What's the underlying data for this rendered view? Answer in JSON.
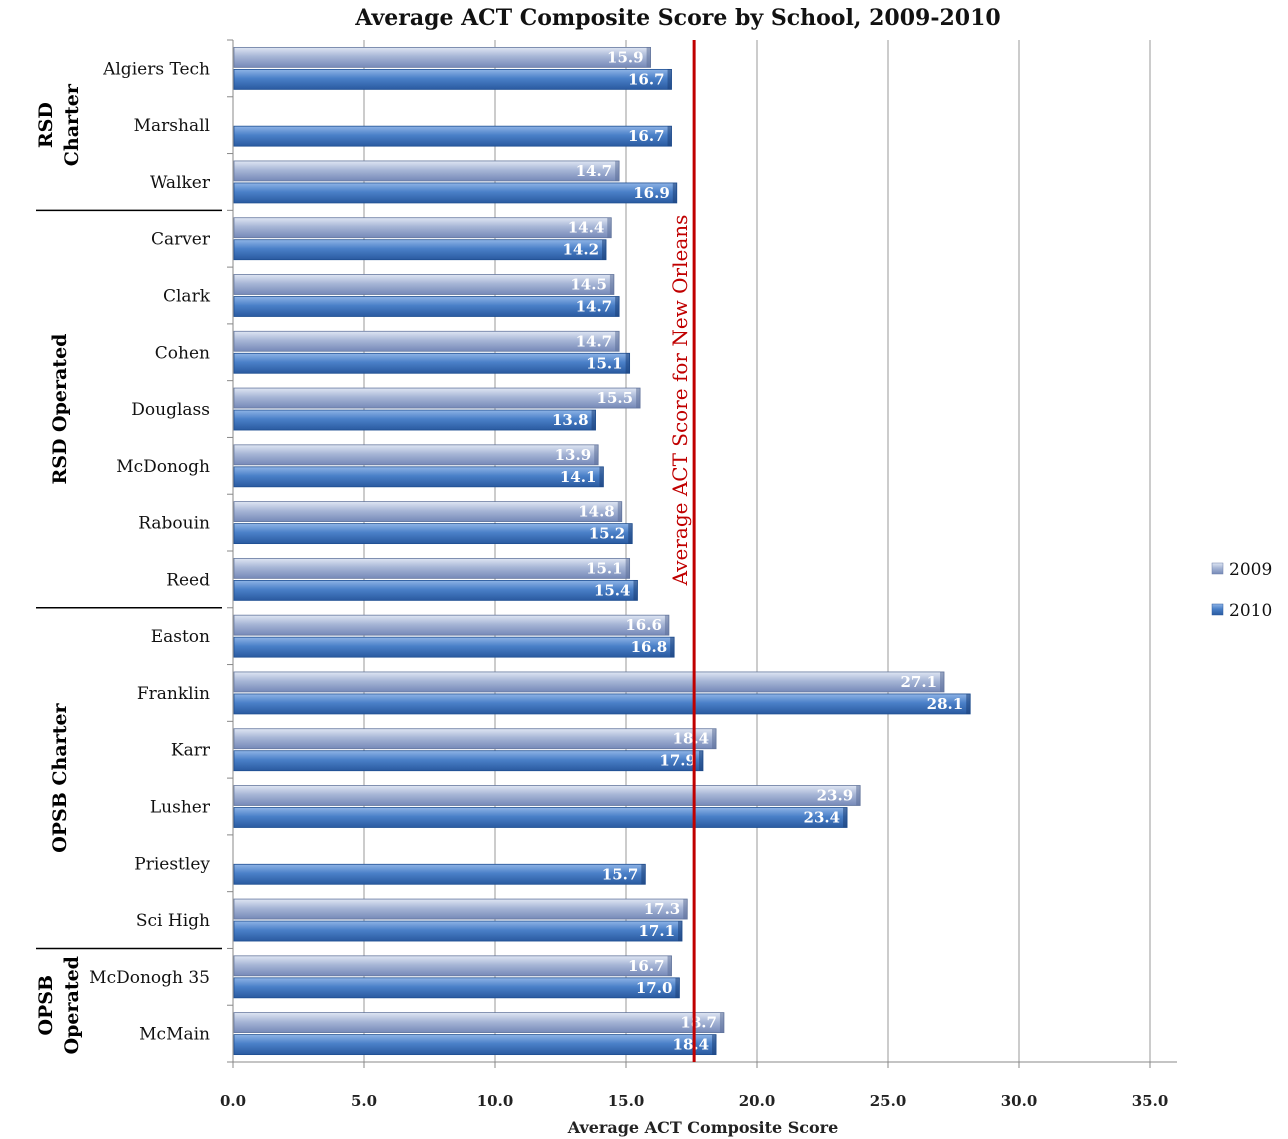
{
  "chart_data": {
    "type": "bar",
    "orientation": "horizontal",
    "title": "Average ACT Composite Score by School, 2009-2010",
    "xlabel": "Average ACT Composite Score",
    "xlim": [
      0,
      35
    ],
    "xticks": [
      "0.0",
      "5.0",
      "10.0",
      "15.0",
      "20.0",
      "25.0",
      "30.0",
      "35.0"
    ],
    "grid": "vertical",
    "legend_position": "right",
    "categories": [
      "Algiers Tech",
      "Marshall",
      "Walker",
      "Carver",
      "Clark",
      "Cohen",
      "Douglass",
      "McDonogh",
      "Rabouin",
      "Reed",
      "Easton",
      "Franklin",
      "Karr",
      "Lusher",
      "Priestley",
      "Sci High",
      "McDonogh 35",
      "McMain"
    ],
    "series": [
      {
        "name": "2009",
        "color": "#8ea1c9",
        "values": [
          15.9,
          null,
          14.7,
          14.4,
          14.5,
          14.7,
          15.5,
          13.9,
          14.8,
          15.1,
          16.6,
          27.1,
          18.4,
          23.9,
          null,
          17.3,
          16.7,
          18.7
        ]
      },
      {
        "name": "2010",
        "color": "#3b6fb8",
        "values": [
          16.7,
          16.7,
          16.9,
          14.2,
          14.7,
          15.1,
          13.8,
          14.1,
          15.2,
          15.4,
          16.8,
          28.1,
          17.9,
          23.4,
          15.7,
          17.1,
          17.0,
          18.4
        ]
      }
    ],
    "value_labels_2009": [
      "15.9",
      "",
      "14.7",
      "14.4",
      "14.5",
      "14.7",
      "15.5",
      "13.9",
      "14.8",
      "15.1",
      "16.6",
      "27.1",
      "18.4",
      "23.9",
      "",
      "17.3",
      "16.7",
      "18.7"
    ],
    "value_labels_2010": [
      "16.7",
      "16.7",
      "16.9",
      "14.2",
      "14.7",
      "15.1",
      "13.8",
      "14.1",
      "15.2",
      "15.4",
      "16.8",
      "28.1",
      "17.9",
      "23.4",
      "15.7",
      "17.1",
      "17.0",
      "18.4"
    ],
    "groups": [
      {
        "label": "RSD Charter",
        "lines": [
          "RSD",
          "Charter"
        ],
        "start": 0,
        "end": 2
      },
      {
        "label": "RSD Operated",
        "lines": [
          "RSD Operated"
        ],
        "start": 3,
        "end": 9
      },
      {
        "label": "OPSB Charter",
        "lines": [
          "OPSB Charter"
        ],
        "start": 10,
        "end": 15
      },
      {
        "label": "OPSB Operated",
        "lines": [
          "OPSB",
          "Operated"
        ],
        "start": 16,
        "end": 17
      }
    ],
    "reference_line": {
      "value": 17.6,
      "label": "Average ACT Score for New Orleans",
      "color": "#c00000"
    }
  }
}
